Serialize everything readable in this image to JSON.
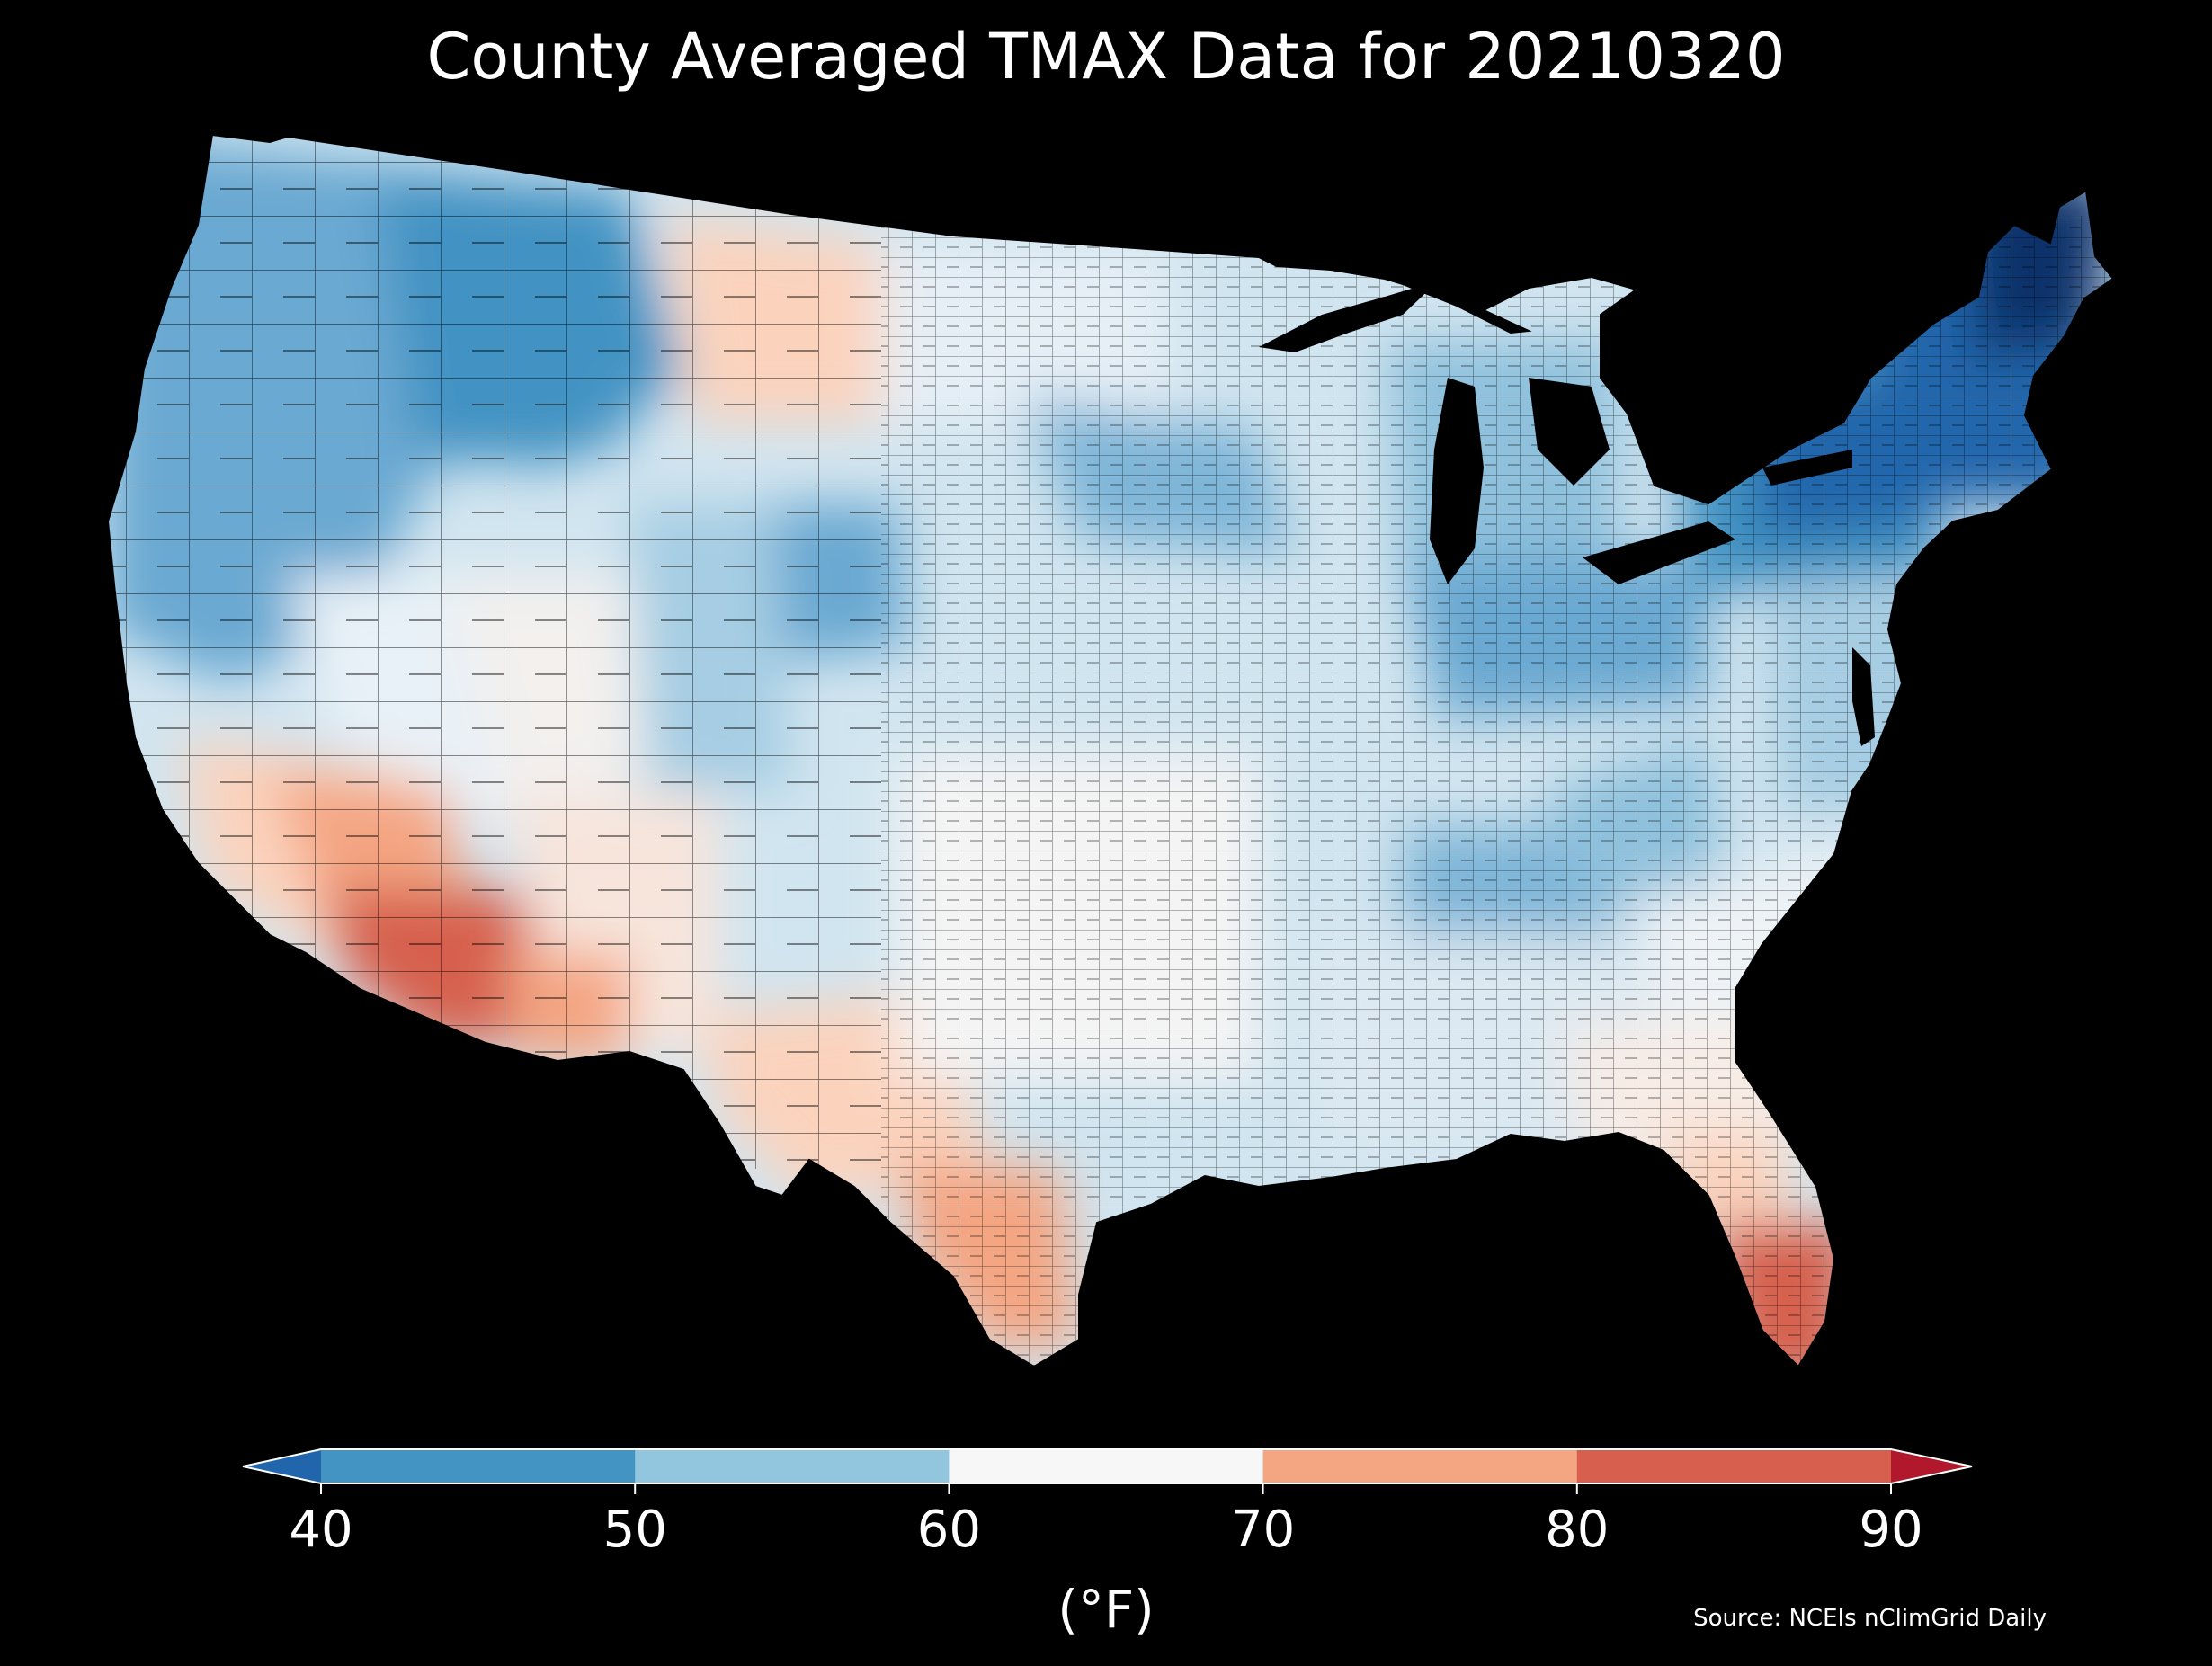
{
  "figure": {
    "title": "County Averaged TMAX Data for 20210320",
    "source": "Source: NCEIs nClimGrid Daily",
    "background": "#000000"
  },
  "map": {
    "region": "Contiguous United States",
    "units": "county",
    "border_color": "#000000",
    "general_pattern": {
      "coldest": "Maine / northern New England and upstate New York, below 40 °F",
      "cool": "Pacific Northwest, northern Rockies, Great Lakes, Ohio Valley, Appalachians (40–60 °F)",
      "mild": "Great Plains, Southeast, Nevada and Utah (60–70 °F)",
      "warmest": "southern Arizona, Imperial Valley, south Texas and south Florida (70–90 °F)"
    }
  },
  "colorbar": {
    "label": "(°F)",
    "ticks": [
      "40",
      "50",
      "60",
      "70",
      "80",
      "90"
    ],
    "extend": "both",
    "bins": [
      {
        "range": "< 40",
        "color": "#2166ac"
      },
      {
        "range": "40–50",
        "color": "#4393c3"
      },
      {
        "range": "50–60",
        "color": "#92c5de"
      },
      {
        "range": "60–70",
        "color": "#f7f7f7"
      },
      {
        "range": "70–80",
        "color": "#f4a582"
      },
      {
        "range": "80–90",
        "color": "#d6604d"
      },
      {
        "range": "> 90",
        "color": "#b2182b"
      }
    ]
  },
  "colors": {
    "cold_extreme": "#08306b",
    "deep_blue": "#2166ac",
    "blue": "#4393c3",
    "light_blue": "#92c5de",
    "pale_blue": "#d1e5f0",
    "neutral": "#f7f7f7",
    "peach": "#fddbc7",
    "salmon": "#f4a582",
    "red": "#d6604d"
  }
}
